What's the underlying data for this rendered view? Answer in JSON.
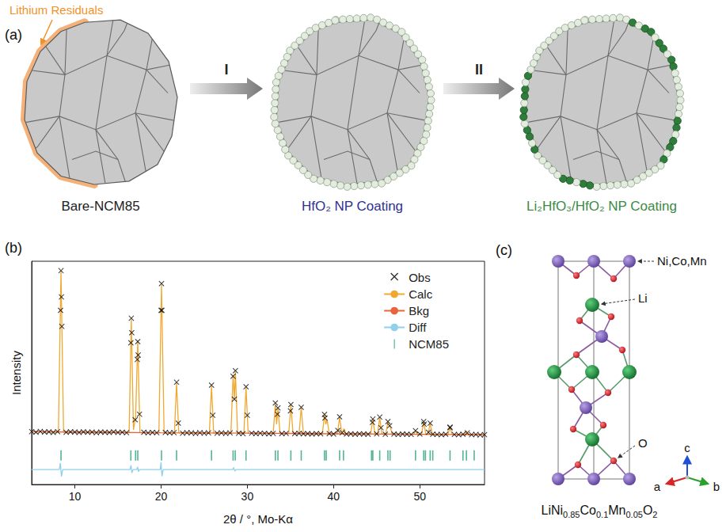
{
  "panel_a": {
    "letter": "(a)",
    "annotation": "Lithium Residuals",
    "steps": [
      "I",
      "II"
    ],
    "stages": [
      "Bare-NCM85",
      "HfO₂ NP Coating",
      "Li₂HfO₃/HfO₂ NP Coating"
    ]
  },
  "panel_b": {
    "letter": "(b)"
  },
  "chart_data": {
    "type": "line",
    "x_label": "2θ / °, Mo-Kα",
    "y_label": "Intensity",
    "xlim": [
      5,
      57.5
    ],
    "xticks": [
      10,
      20,
      30,
      40,
      50
    ],
    "ylim": [
      0,
      100
    ],
    "yticks": [],
    "tick_labels": "x",
    "legend": "upper right",
    "series": [
      {
        "name": "Obs",
        "type": "scatter",
        "marker": "x",
        "color": "#000000",
        "x": [
          5.0,
          5.5,
          6.0,
          6.5,
          7.0,
          7.5,
          8.0,
          8.5,
          9.0,
          9.5,
          10.0,
          10.5,
          11.0,
          11.5,
          12.0,
          12.5,
          13.0,
          13.5,
          14.0,
          14.5,
          15.0,
          15.5,
          16.0,
          16.5,
          17.0,
          17.5,
          18.0,
          18.5,
          19.0,
          19.5,
          20.0,
          20.5,
          21.0,
          21.5,
          22.0,
          22.5,
          23.0,
          23.5,
          24.0,
          24.5,
          25.0,
          25.5,
          26.0,
          26.5,
          27.0,
          27.5,
          28.0,
          28.5,
          29.0,
          29.5,
          30.0,
          30.5,
          31.0,
          31.5,
          32.0,
          32.5,
          33.0,
          33.5,
          34.0,
          34.5,
          35.0,
          35.5,
          36.0,
          36.5,
          37.0,
          37.5,
          38.0,
          38.5,
          39.0,
          39.5,
          40.0,
          40.5,
          41.0,
          41.5,
          42.0,
          42.5,
          43.0,
          43.5,
          44.0,
          44.5,
          45.0,
          45.5,
          46.0,
          46.5,
          47.0,
          47.5,
          48.0,
          48.5,
          49.0,
          49.5,
          50.0,
          50.5,
          51.0,
          51.5,
          52.0,
          52.5,
          53.0,
          53.5,
          54.0,
          54.5,
          55.0,
          55.5,
          56.0,
          56.5,
          57.0,
          57.5,
          8.4,
          8.35,
          8.45,
          16.55,
          16.6,
          17.3,
          17.25,
          17.35,
          20.05,
          20.1,
          21.8,
          25.85,
          28.35,
          28.62,
          29.85,
          33.25,
          33.55,
          35.05,
          36.25,
          38.95,
          40.7,
          44.55,
          45.35,
          46.3,
          50.45,
          51.2,
          53.5
        ],
        "values": [
          23.7,
          23.4,
          23.8,
          23.5,
          23.6,
          23.3,
          23.7,
          70.8,
          23.4,
          23.6,
          23.5,
          23.3,
          23.6,
          23.4,
          23.5,
          23.2,
          23.5,
          23.4,
          23.3,
          23.6,
          23.3,
          23.4,
          23.2,
          63.5,
          29.0,
          31.5,
          23.4,
          23.1,
          23.3,
          23.2,
          78.0,
          23.3,
          23.1,
          23.2,
          27.5,
          23.0,
          23.2,
          23.1,
          22.9,
          23.2,
          23.0,
          23.1,
          31.0,
          23.0,
          23.1,
          22.9,
          23.1,
          38.2,
          23.0,
          22.8,
          31.0,
          23.0,
          22.8,
          23.0,
          22.9,
          22.7,
          22.9,
          31.5,
          22.8,
          22.9,
          33.0,
          22.8,
          22.9,
          22.7,
          22.8,
          22.6,
          22.8,
          22.7,
          29.8,
          22.8,
          22.6,
          24.2,
          23.2,
          22.6,
          22.7,
          22.5,
          22.7,
          22.6,
          22.5,
          27.8,
          22.7,
          25.4,
          22.5,
          26.3,
          22.6,
          22.4,
          22.6,
          22.5,
          22.4,
          24.1,
          22.6,
          27.0,
          23.4,
          22.5,
          22.4,
          22.3,
          22.5,
          25.4,
          22.4,
          22.3,
          22.5,
          23.1,
          22.3,
          22.4,
          22.2,
          22.3,
          95.8,
          78,
          84,
          74.5,
          68,
          64,
          56,
          58,
          90,
          78,
          45.8,
          44.5,
          48.5,
          51,
          43.8,
          36.5,
          34.3,
          35.8,
          34.6,
          31.4,
          30.3,
          29.3,
          30.2,
          28.2,
          28.2,
          27.5,
          25.7
        ]
      },
      {
        "name": "Calc",
        "type": "line",
        "color": "#f0a830",
        "x": [
          5,
          8.1,
          8.4,
          8.7,
          12,
          16.3,
          16.55,
          16.8,
          17.05,
          17.3,
          17.55,
          19.75,
          20.05,
          20.35,
          21.55,
          21.8,
          22.05,
          25.6,
          25.85,
          26.1,
          28.1,
          28.35,
          28.5,
          28.62,
          28.87,
          29.6,
          29.85,
          30.1,
          33.0,
          33.25,
          33.4,
          33.55,
          33.8,
          34.8,
          35.05,
          35.3,
          36.0,
          36.25,
          36.5,
          38.7,
          38.95,
          39.1,
          39.25,
          39.5,
          40.45,
          40.7,
          40.95,
          41.2,
          41.45,
          44.3,
          44.55,
          44.8,
          45.1,
          45.35,
          45.6,
          46.05,
          46.3,
          46.55,
          46.8,
          49.3,
          49.5,
          49.7,
          50.2,
          50.45,
          50.7,
          50.95,
          51.2,
          51.45,
          53.25,
          53.5,
          53.75,
          55.2,
          55.4,
          55.6,
          57.5
        ],
        "values": [
          23.6,
          23.5,
          95.4,
          23.5,
          23.4,
          23.3,
          74.1,
          24.5,
          30,
          64.5,
          23.3,
          23.2,
          89.4,
          23.2,
          23.2,
          45.4,
          23.2,
          23.0,
          44,
          23.0,
          23.0,
          49,
          38,
          50.4,
          22.9,
          22.9,
          43.3,
          22.9,
          22.8,
          36.2,
          27,
          34,
          22.8,
          22.8,
          35.5,
          22.8,
          22.8,
          34.4,
          22.7,
          22.7,
          31.2,
          27,
          29,
          22.7,
          22.7,
          30.1,
          22.7,
          25,
          22.6,
          22.6,
          29.1,
          22.6,
          22.6,
          30,
          22.6,
          22.6,
          28,
          26,
          22.6,
          22.5,
          24,
          22.5,
          22.5,
          28,
          22.5,
          22.5,
          27.3,
          22.4,
          22.4,
          25.5,
          22.4,
          22.4,
          24,
          22.3,
          22.3
        ]
      },
      {
        "name": "Bkg",
        "type": "line",
        "color": "#e8643c",
        "x": [
          5,
          10,
          20,
          30,
          40,
          50,
          57.5
        ],
        "values": [
          23.6,
          23.5,
          23.2,
          22.98,
          22.7,
          22.5,
          22.3
        ]
      },
      {
        "name": "Diff",
        "type": "line",
        "color": "#8fd0ec",
        "x": [
          5,
          8.2,
          8.33,
          8.45,
          8.6,
          16.4,
          16.52,
          16.62,
          16.75,
          17.2,
          17.28,
          17.38,
          17.5,
          19.9,
          20.0,
          20.1,
          20.25,
          28.3,
          28.42,
          28.55,
          28.7,
          57.5
        ],
        "values": [
          6.7,
          6.7,
          9.6,
          3.6,
          6.7,
          6.7,
          8.6,
          5.2,
          6.7,
          6.7,
          7.9,
          5.8,
          6.7,
          6.7,
          9.9,
          3.7,
          6.7,
          6.7,
          7.6,
          6.0,
          6.7,
          6.7
        ]
      },
      {
        "name": "NCM85",
        "type": "scatter",
        "marker": "tick",
        "color": "#2aa07a",
        "x": [
          8.4,
          16.5,
          17.05,
          17.3,
          20.05,
          21.8,
          25.85,
          28.35,
          28.6,
          29.85,
          33.25,
          33.55,
          35.05,
          36.25,
          38.95,
          39.15,
          40.7,
          41.15,
          44.4,
          44.55,
          45.35,
          46.3,
          46.55,
          49.5,
          50.45,
          50.65,
          51.2,
          51.5,
          53.5,
          55.0,
          55.4,
          56.3
        ],
        "values": [
          13,
          13,
          13,
          13,
          13,
          13,
          13,
          13,
          13,
          13,
          13,
          13,
          13,
          13,
          13,
          13,
          13,
          13,
          13,
          13,
          13,
          13,
          13,
          13,
          13,
          13,
          13,
          13,
          13,
          13,
          13,
          13
        ]
      }
    ]
  },
  "panel_c": {
    "letter": "(c)",
    "labels": {
      "transition_metal": "Ni,Co,Mn",
      "lithium": "Li",
      "oxygen": "O"
    },
    "axes": [
      "a",
      "b",
      "c"
    ],
    "formula": [
      {
        "text": "LiNi"
      },
      {
        "text": "0.85",
        "subscript": true
      },
      {
        "text": "Co"
      },
      {
        "text": "0.1",
        "subscript": true
      },
      {
        "text": "Mn"
      },
      {
        "text": "0.05",
        "subscript": true
      },
      {
        "text": "O"
      },
      {
        "text": "2",
        "subscript": true
      }
    ]
  }
}
